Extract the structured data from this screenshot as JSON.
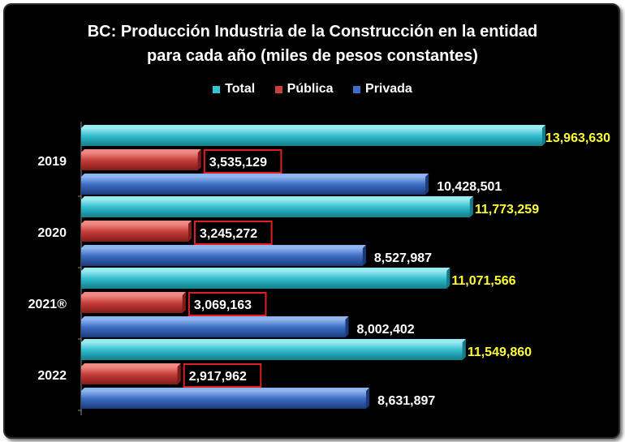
{
  "title": {
    "line1": "BC: Producción Industria de la Construcción en la entidad",
    "line2": "para cada año (miles de pesos constantes)"
  },
  "chart_data": {
    "type": "bar",
    "orientation": "horizontal",
    "categories": [
      "2019",
      "2020",
      "2021®",
      "2022"
    ],
    "series": [
      {
        "name": "Total",
        "values": [
          13963630,
          11773259,
          11071566,
          11549860
        ],
        "labels": [
          "13,963,630",
          "11,773,259",
          "11,071,566",
          "11,549,860"
        ]
      },
      {
        "name": "Pública",
        "values": [
          3535129,
          3245272,
          3069163,
          2917962
        ],
        "labels": [
          "3,535,129",
          "3,245,272",
          "3,069,163",
          "2,917,962"
        ]
      },
      {
        "name": "Privada",
        "values": [
          10428501,
          8527987,
          8002402,
          8631897
        ],
        "labels": [
          "10,428,501",
          "8,527,987",
          "8,002,402",
          "8,631,897"
        ]
      }
    ],
    "xlim": [
      0,
      13963630
    ],
    "grid": false,
    "legend": "top"
  },
  "legend": [
    {
      "label": "Total",
      "color": "#35c4d4"
    },
    {
      "label": "Pública",
      "color": "#c9413d"
    },
    {
      "label": "Privada",
      "color": "#3a6fc4"
    }
  ],
  "colors": {
    "total_top": "#9aeaf2",
    "total_mid": "#31bccc",
    "total_bot": "#137d8a",
    "publica_top": "#f08a86",
    "publica_mid": "#c73b37",
    "publica_bot": "#7f1c1a",
    "privada_top": "#8fb3ee",
    "privada_mid": "#3a6cc2",
    "privada_bot": "#1c3a78",
    "total_label": "#ffff33",
    "other_label": "#ffffff",
    "highlight_box": "#e02020"
  }
}
